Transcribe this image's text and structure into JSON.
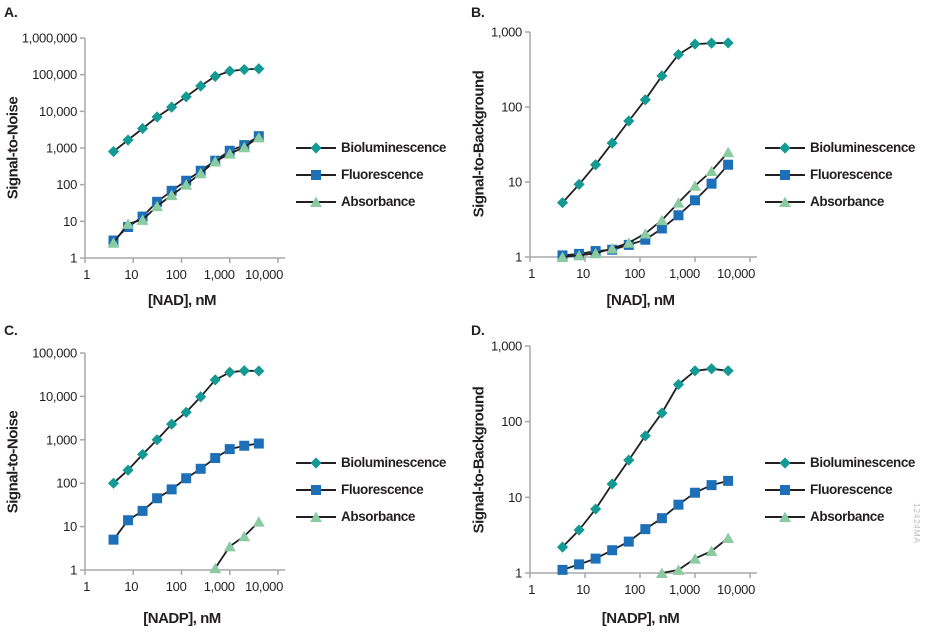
{
  "figure": {
    "watermark": "12424MA",
    "background": "#ffffff",
    "line_color": "#231F20",
    "axis_color": "#A7A9AC",
    "text_color": "#231F20"
  },
  "chart_data": [
    {
      "id": "A",
      "panel_label": "A.",
      "type": "line",
      "x_scale": "log",
      "y_scale": "log",
      "xlabel": "[NAD], nM",
      "ylabel": "Signal-to-Noise",
      "xlim": [
        1,
        10000
      ],
      "ylim": [
        1,
        1000000
      ],
      "x_tick_labels": [
        "1",
        "10",
        "100",
        "1,000",
        "10,000"
      ],
      "y_tick_labels": [
        "1",
        "10",
        "100",
        "1,000",
        "10,000",
        "100,000",
        "1,000,000"
      ],
      "grid": false,
      "legend_position": "right",
      "series": [
        {
          "name": "Bioluminescence",
          "marker": "diamond",
          "color": "#149A94",
          "x": [
            3.9,
            7.8,
            15.6,
            31.2,
            62.5,
            125,
            250,
            500,
            1000,
            2000,
            4000
          ],
          "y": [
            800,
            1650,
            3400,
            7000,
            13000,
            25000,
            49000,
            90000,
            125000,
            138000,
            145000
          ]
        },
        {
          "name": "Fluorescence",
          "marker": "square",
          "color": "#1D70B7",
          "x": [
            3.9,
            7.8,
            15.6,
            31.2,
            62.5,
            125,
            250,
            500,
            1000,
            2000,
            4000
          ],
          "y": [
            3.0,
            7.0,
            13.5,
            34,
            68,
            128,
            240,
            450,
            840,
            1200,
            2100
          ]
        },
        {
          "name": "Absorbance",
          "marker": "triangle",
          "color": "#8BCBA2",
          "x": [
            3.9,
            7.8,
            15.6,
            31.2,
            62.5,
            125,
            250,
            500,
            1000,
            2000,
            4000
          ],
          "y": [
            2.6,
            8.5,
            11,
            26,
            52,
            100,
            205,
            430,
            700,
            1050,
            1950
          ]
        }
      ]
    },
    {
      "id": "B",
      "panel_label": "B.",
      "type": "line",
      "x_scale": "log",
      "y_scale": "log",
      "xlabel": "[NAD], nM",
      "ylabel": "Signal-to-Background",
      "xlim": [
        1,
        10000
      ],
      "ylim": [
        1,
        1000
      ],
      "x_tick_labels": [
        "1",
        "10",
        "100",
        "1,000",
        "10,000"
      ],
      "y_tick_labels": [
        "1",
        "10",
        "100",
        "1,000"
      ],
      "grid": false,
      "legend_position": "right",
      "series": [
        {
          "name": "Bioluminescence",
          "marker": "diamond",
          "color": "#149A94",
          "x": [
            3.9,
            7.8,
            15.6,
            31.2,
            62.5,
            125,
            250,
            500,
            1000,
            2000,
            4000
          ],
          "y": [
            5.3,
            9.3,
            17,
            33,
            65,
            125,
            260,
            500,
            690,
            710,
            715
          ]
        },
        {
          "name": "Fluorescence",
          "marker": "square",
          "color": "#1D70B7",
          "x": [
            3.9,
            7.8,
            15.6,
            31.2,
            62.5,
            125,
            250,
            500,
            1000,
            2000,
            4000
          ],
          "y": [
            1.05,
            1.1,
            1.2,
            1.25,
            1.45,
            1.7,
            2.4,
            3.6,
            5.7,
            9.5,
            17
          ]
        },
        {
          "name": "Absorbance",
          "marker": "triangle",
          "color": "#8BCBA2",
          "x": [
            3.9,
            7.8,
            15.6,
            31.2,
            62.5,
            125,
            250,
            500,
            1000,
            2000,
            4000
          ],
          "y": [
            1.0,
            1.05,
            1.12,
            1.3,
            1.55,
            2.05,
            3.1,
            5.3,
            8.9,
            14,
            25
          ]
        }
      ]
    },
    {
      "id": "C",
      "panel_label": "C.",
      "type": "line",
      "x_scale": "log",
      "y_scale": "log",
      "xlabel": "[NADP], nM",
      "ylabel": "Signal-to-Noise",
      "xlim": [
        1,
        10000
      ],
      "ylim": [
        1,
        100000
      ],
      "x_tick_labels": [
        "1",
        "10",
        "100",
        "1,000",
        "10,000"
      ],
      "y_tick_labels": [
        "1",
        "10",
        "100",
        "1,000",
        "10,000",
        "100,000"
      ],
      "grid": false,
      "legend_position": "right",
      "series": [
        {
          "name": "Bioluminescence",
          "marker": "diamond",
          "color": "#149A94",
          "x": [
            3.9,
            7.8,
            15.6,
            31.2,
            62.5,
            125,
            250,
            500,
            1000,
            2000,
            4000
          ],
          "y": [
            100,
            200,
            460,
            1000,
            2300,
            4300,
            9800,
            24000,
            36000,
            39000,
            38500
          ]
        },
        {
          "name": "Fluorescence",
          "marker": "square",
          "color": "#1D70B7",
          "x": [
            3.9,
            7.8,
            15.6,
            31.2,
            62.5,
            125,
            250,
            500,
            1000,
            2000,
            4000
          ],
          "y": [
            5,
            14,
            23,
            45,
            72,
            130,
            215,
            380,
            610,
            730,
            820
          ]
        },
        {
          "name": "Absorbance",
          "marker": "triangle",
          "color": "#8BCBA2",
          "x": [
            500,
            1000,
            2000,
            4000
          ],
          "y": [
            1.1,
            3.5,
            6.0,
            13
          ]
        }
      ]
    },
    {
      "id": "D",
      "panel_label": "D.",
      "type": "line",
      "x_scale": "log",
      "y_scale": "log",
      "xlabel": "[NADP], nM",
      "ylabel": "Signal-to-Background",
      "xlim": [
        1,
        10000
      ],
      "ylim": [
        1,
        1000
      ],
      "x_tick_labels": [
        "1",
        "10",
        "100",
        "1,000",
        "10,000"
      ],
      "y_tick_labels": [
        "1",
        "10",
        "100",
        "1,000"
      ],
      "grid": false,
      "legend_position": "right",
      "series": [
        {
          "name": "Bioluminescence",
          "marker": "diamond",
          "color": "#149A94",
          "x": [
            3.9,
            7.8,
            15.6,
            31.2,
            62.5,
            125,
            250,
            500,
            1000,
            2000,
            4000
          ],
          "y": [
            2.2,
            3.7,
            7,
            15,
            31,
            65,
            130,
            310,
            470,
            500,
            470
          ]
        },
        {
          "name": "Fluorescence",
          "marker": "square",
          "color": "#1D70B7",
          "x": [
            3.9,
            7.8,
            15.6,
            31.2,
            62.5,
            125,
            250,
            500,
            1000,
            2000,
            4000
          ],
          "y": [
            1.1,
            1.3,
            1.55,
            2.0,
            2.6,
            3.8,
            5.3,
            8.0,
            11.5,
            14.5,
            16.5
          ]
        },
        {
          "name": "Absorbance",
          "marker": "triangle",
          "color": "#8BCBA2",
          "x": [
            250,
            500,
            1000,
            2000,
            4000
          ],
          "y": [
            1.0,
            1.1,
            1.55,
            1.95,
            2.9
          ]
        }
      ]
    }
  ]
}
